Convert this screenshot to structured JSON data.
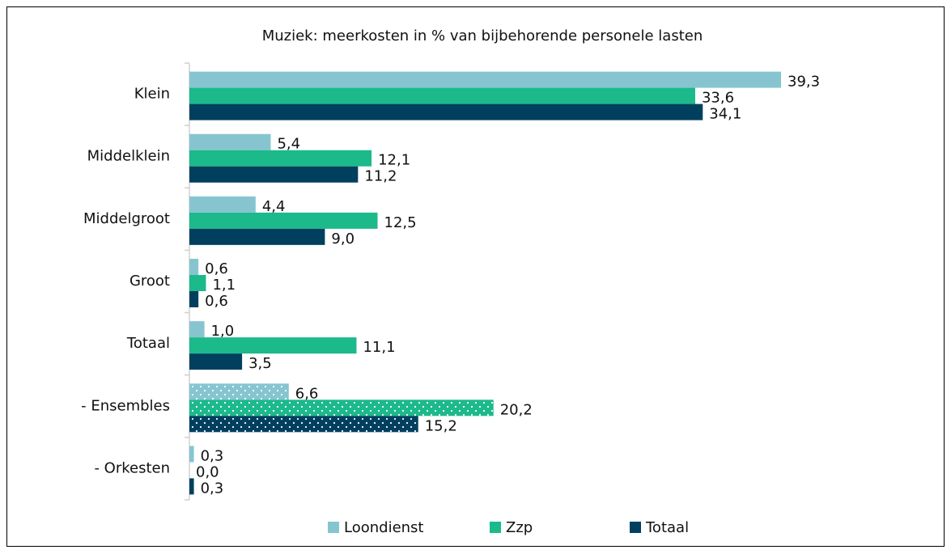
{
  "chart_data": {
    "type": "hbar",
    "title": "Muziek: meerkosten in % van bijbehorende personele lasten",
    "categories": [
      "Klein",
      "Middelklein",
      "Middelgroot",
      "Groot",
      "Totaal",
      "- Ensembles",
      "- Orkesten"
    ],
    "dotted": [
      false,
      false,
      false,
      false,
      false,
      true,
      false
    ],
    "legend": "bottom",
    "series": [
      {
        "name": "Loondienst",
        "color": "#86c5d0",
        "values": [
          39.3,
          5.4,
          4.4,
          0.6,
          1.0,
          6.6,
          0.3
        ],
        "value_labels": [
          "39,3",
          "5,4",
          "4,4",
          "0,6",
          "1,0",
          "6,6",
          "0,3"
        ]
      },
      {
        "name": "Zzp",
        "color": "#1cb98b",
        "values": [
          33.6,
          12.1,
          12.5,
          1.1,
          11.1,
          20.2,
          0.0
        ],
        "value_labels": [
          "33,6",
          "12,1",
          "12,5",
          "1,1",
          "11,1",
          "20,2",
          "0,0"
        ]
      },
      {
        "name": "Totaal",
        "color": "#00405e",
        "values": [
          34.1,
          11.2,
          9.0,
          0.6,
          3.5,
          15.2,
          0.3
        ],
        "value_labels": [
          "34,1",
          "11,2",
          "9,0",
          "0,6",
          "3,5",
          "15,2",
          "0,3"
        ]
      }
    ]
  }
}
